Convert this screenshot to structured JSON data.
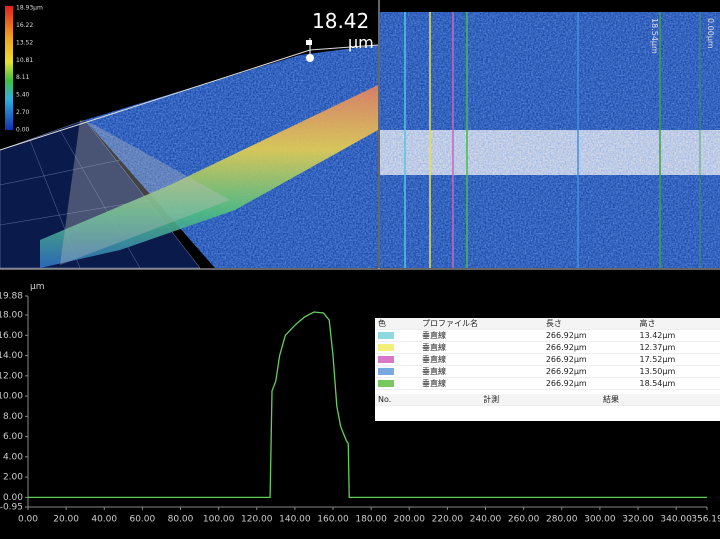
{
  "colorbar": {
    "labels": [
      "18.93µm",
      "16.22",
      "13.52",
      "10.81",
      "8.11",
      "5.40",
      "2.70",
      "0.00"
    ]
  },
  "view3d": {
    "height_value": "18.42",
    "height_unit": "µm"
  },
  "image": {
    "line_labels": [
      "18.54µm",
      "0.00µm"
    ]
  },
  "chart_data": {
    "type": "line",
    "y_unit": "µm",
    "x": [
      0,
      127,
      128,
      130,
      132,
      135,
      140,
      145,
      150,
      155,
      158,
      160,
      162,
      164,
      167,
      168,
      168.5,
      356.19
    ],
    "series": [
      {
        "color": "#63cf5a",
        "values": [
          0,
          0,
          10.5,
          11.5,
          14,
          16,
          17,
          17.8,
          18.3,
          18.2,
          17.5,
          14,
          9,
          7,
          5.6,
          5.3,
          0,
          0
        ]
      }
    ],
    "xlim": [
      0,
      356.19
    ],
    "ylim": [
      -0.95,
      19.88
    ],
    "xticks": [
      {
        "value": 0,
        "label": "0.00"
      },
      {
        "value": 20,
        "label": "20.00"
      },
      {
        "value": 40,
        "label": "40.00"
      },
      {
        "value": 60,
        "label": "60.00"
      },
      {
        "value": 80,
        "label": "80.00"
      },
      {
        "value": 100,
        "label": "100.00"
      },
      {
        "value": 120,
        "label": "120.00"
      },
      {
        "value": 140,
        "label": "140.00"
      },
      {
        "value": 160,
        "label": "160.00"
      },
      {
        "value": 180,
        "label": "180.00"
      },
      {
        "value": 200,
        "label": "200.00"
      },
      {
        "value": 220,
        "label": "220.00"
      },
      {
        "value": 240,
        "label": "240.00"
      },
      {
        "value": 260,
        "label": "260.00"
      },
      {
        "value": 280,
        "label": "280.00"
      },
      {
        "value": 300,
        "label": "300.00"
      },
      {
        "value": 320,
        "label": "320.00"
      },
      {
        "value": 340,
        "label": "340.00"
      },
      356.19
    ],
    "yticks": [
      19.88,
      {
        "value": 18,
        "label": "18.00"
      },
      {
        "value": 16,
        "label": "16.00"
      },
      {
        "value": 14,
        "label": "14.00"
      },
      {
        "value": 12,
        "label": "12.00"
      },
      {
        "value": 10,
        "label": "10.00"
      },
      {
        "value": 8,
        "label": "8.00"
      },
      {
        "value": 6,
        "label": "6.00"
      },
      {
        "value": 4,
        "label": "4.00"
      },
      {
        "value": 2,
        "label": "2.00"
      },
      {
        "value": 0,
        "label": "0.00"
      },
      -0.95
    ]
  },
  "table": {
    "headers": [
      "色",
      "プロファイル名",
      "長さ",
      "高さ"
    ],
    "rows": [
      {
        "color": "#8fd8e0",
        "name": "垂直線",
        "length": "266.92µm",
        "height": "13.42µm"
      },
      {
        "color": "#f2f07a",
        "name": "垂直線",
        "length": "266.92µm",
        "height": "12.37µm"
      },
      {
        "color": "#d878c8",
        "name": "垂直線",
        "length": "266.92µm",
        "height": "17.52µm"
      },
      {
        "color": "#78a8e0",
        "name": "垂直線",
        "length": "266.92µm",
        "height": "13.50µm"
      },
      {
        "color": "#78c860",
        "name": "垂直線",
        "length": "266.92µm",
        "height": "18.54µm"
      }
    ],
    "measure_headers": [
      "No.",
      "計測",
      "結果"
    ]
  }
}
